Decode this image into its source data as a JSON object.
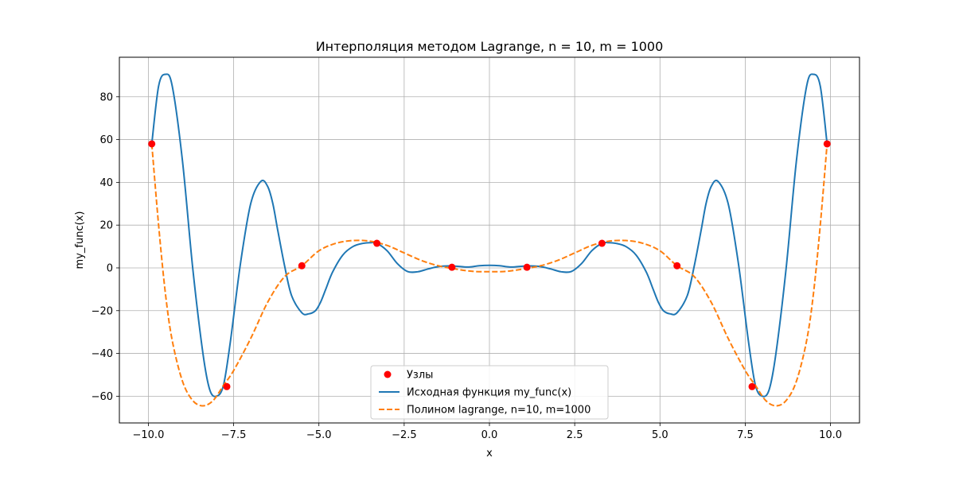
{
  "chart_data": {
    "type": "line",
    "title": "Интерполяция методом Lagrange, n = 10, m = 1000",
    "xlabel": "x",
    "ylabel": "my_func(x)",
    "xlim": [
      -10.85,
      10.85
    ],
    "ylim": [
      -72.5,
      98.5
    ],
    "x_ticks": [
      -10.0,
      -7.5,
      -5.0,
      -2.5,
      0.0,
      2.5,
      5.0,
      7.5,
      10.0
    ],
    "x_tick_labels": [
      "−10.0",
      "−7.5",
      "−5.0",
      "−2.5",
      "0.0",
      "2.5",
      "5.0",
      "7.5",
      "10.0"
    ],
    "y_ticks": [
      -60,
      -40,
      -20,
      0,
      20,
      40,
      60,
      80
    ],
    "y_tick_labels": [
      "−60",
      "−40",
      "−20",
      "0",
      "20",
      "40",
      "60",
      "80"
    ],
    "grid": true,
    "legend_position": "bottom-center",
    "series": [
      {
        "name": "Узлы",
        "kind": "scatter",
        "color": "#ff0000",
        "x": [
          -9.9,
          -7.7,
          -5.5,
          -3.3,
          -1.1,
          1.1,
          3.3,
          5.5,
          7.7,
          9.9
        ],
        "y": [
          58.0,
          -55.5,
          1.0,
          11.5,
          0.3,
          0.3,
          11.5,
          1.0,
          -55.5,
          58.0
        ]
      },
      {
        "name": "Исходная функция my_func(x)",
        "kind": "solid",
        "color": "#1f77b4",
        "x": [
          -9.9,
          -9.7,
          -9.5,
          -9.3,
          -9.0,
          -8.7,
          -8.4,
          -8.2,
          -8.0,
          -7.8,
          -7.6,
          -7.3,
          -7.0,
          -6.7,
          -6.5,
          -6.35,
          -6.2,
          -6.0,
          -5.8,
          -5.5,
          -5.3,
          -5.1,
          -4.95,
          -4.8,
          -4.6,
          -4.3,
          -4.0,
          -3.7,
          -3.5,
          -3.3,
          -3.0,
          -2.7,
          -2.4,
          -2.1,
          -1.8,
          -1.5,
          -1.2,
          -0.9,
          -0.6,
          -0.3,
          0.0,
          0.3,
          0.6,
          0.9,
          1.2,
          1.5,
          1.8,
          2.1,
          2.4,
          2.7,
          3.0,
          3.3,
          3.5,
          3.7,
          4.0,
          4.3,
          4.6,
          4.8,
          4.95,
          5.1,
          5.3,
          5.5,
          5.8,
          6.0,
          6.2,
          6.35,
          6.5,
          6.7,
          7.0,
          7.3,
          7.6,
          7.8,
          8.0,
          8.2,
          8.4,
          8.7,
          9.0,
          9.3,
          9.5,
          9.7,
          9.9
        ],
        "y": [
          58.0,
          85.0,
          90.5,
          85.0,
          50.0,
          0.0,
          -40.0,
          -57.0,
          -60.0,
          -55.0,
          -35.0,
          2.0,
          30.0,
          40.5,
          38.0,
          30.0,
          17.0,
          0.5,
          -13.0,
          -21.0,
          -21.5,
          -20.0,
          -16.0,
          -10.0,
          -2.0,
          6.0,
          10.0,
          11.5,
          11.8,
          11.5,
          8.0,
          2.0,
          -1.7,
          -1.8,
          -0.5,
          0.6,
          0.9,
          0.7,
          0.4,
          1.0,
          1.2,
          1.0,
          0.4,
          0.7,
          0.9,
          0.6,
          -0.5,
          -1.8,
          -1.7,
          2.0,
          8.0,
          11.5,
          11.8,
          11.5,
          10.0,
          6.0,
          -2.0,
          -10.0,
          -16.0,
          -20.0,
          -21.5,
          -21.0,
          -13.0,
          0.5,
          17.0,
          30.0,
          38.0,
          40.5,
          30.0,
          2.0,
          -35.0,
          -55.0,
          -60.0,
          -57.0,
          -40.0,
          0.0,
          50.0,
          85.0,
          90.5,
          85.0,
          58.0
        ]
      },
      {
        "name": "Полином lagrange, n=10, m=1000",
        "kind": "dashed",
        "color": "#ff7f0e",
        "x": [
          -9.9,
          -9.7,
          -9.5,
          -9.3,
          -9.0,
          -8.7,
          -8.4,
          -8.1,
          -7.8,
          -7.5,
          -7.0,
          -6.5,
          -6.0,
          -5.5,
          -5.0,
          -4.5,
          -4.0,
          -3.5,
          -3.0,
          -2.5,
          -2.0,
          -1.5,
          -1.0,
          -0.5,
          0.0,
          0.5,
          1.0,
          1.5,
          2.0,
          2.5,
          3.0,
          3.5,
          4.0,
          4.5,
          5.0,
          5.5,
          6.0,
          6.5,
          7.0,
          7.5,
          7.8,
          8.1,
          8.4,
          8.7,
          9.0,
          9.3,
          9.5,
          9.7,
          9.9
        ],
        "y": [
          58.0,
          20.0,
          -12.0,
          -34.0,
          -53.0,
          -62.0,
          -64.5,
          -62.0,
          -55.0,
          -48.0,
          -33.0,
          -16.0,
          -4.0,
          1.0,
          8.0,
          11.5,
          12.8,
          12.5,
          10.5,
          7.0,
          3.5,
          1.0,
          -0.5,
          -1.6,
          -1.8,
          -1.6,
          -0.5,
          1.0,
          3.5,
          7.0,
          10.5,
          12.5,
          12.8,
          11.5,
          8.0,
          1.0,
          -4.0,
          -16.0,
          -33.0,
          -48.0,
          -55.0,
          -62.0,
          -64.5,
          -62.0,
          -53.0,
          -34.0,
          -12.0,
          20.0,
          58.0
        ]
      }
    ]
  }
}
